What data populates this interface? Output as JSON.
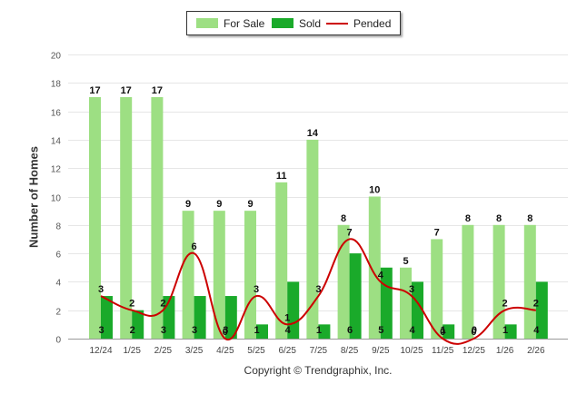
{
  "chart_data": {
    "type": "bar",
    "title": "",
    "xlabel": "",
    "ylabel": "Number of Homes",
    "ylim": [
      0,
      20
    ],
    "yticks": [
      0,
      2,
      4,
      6,
      8,
      10,
      12,
      14,
      16,
      18,
      20
    ],
    "grid": true,
    "legend_position": "top-center",
    "categories": [
      "12/24",
      "1/25",
      "2/25",
      "3/25",
      "4/25",
      "5/25",
      "6/25",
      "7/25",
      "8/25",
      "9/25",
      "10/25",
      "11/25",
      "12/25",
      "1/26",
      "2/26"
    ],
    "series": [
      {
        "name": "For Sale",
        "kind": "bar",
        "color": "#9ddf83",
        "values": [
          17,
          17,
          17,
          9,
          9,
          9,
          11,
          14,
          8,
          10,
          5,
          7,
          8,
          8,
          8
        ]
      },
      {
        "name": "Sold",
        "kind": "bar",
        "color": "#1aaa2a",
        "values": [
          3,
          2,
          3,
          3,
          3,
          1,
          4,
          1,
          6,
          5,
          4,
          1,
          0,
          1,
          4
        ]
      },
      {
        "name": "Pended",
        "kind": "line",
        "color": "#cc0000",
        "values": [
          3,
          2,
          2,
          6,
          0,
          3,
          1,
          3,
          7,
          4,
          3,
          0,
          0,
          2,
          2
        ]
      }
    ]
  },
  "footer": {
    "copyright": "Copyright © Trendgraphix, Inc."
  }
}
